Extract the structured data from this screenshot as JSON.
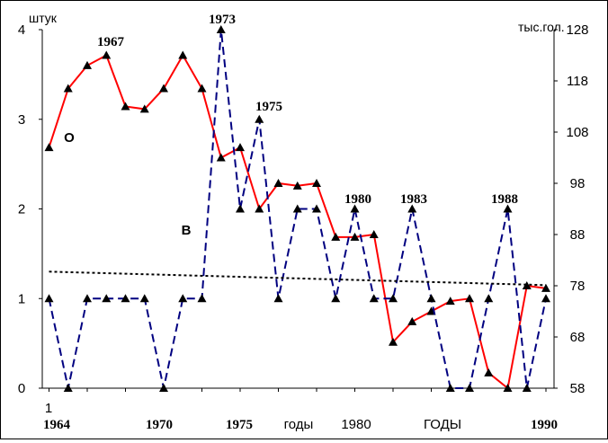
{
  "chart_data": {
    "type": "line",
    "left_axis": {
      "unit": "штук",
      "ylim": [
        0,
        4
      ],
      "ticks": [
        "0",
        "1",
        "2",
        "3",
        "4"
      ]
    },
    "right_axis": {
      "unit": "тыс.гол.",
      "ylim": [
        58,
        128
      ],
      "ticks": [
        "58",
        "68",
        "78",
        "88",
        "98",
        "108",
        "118",
        "128"
      ]
    },
    "x_labels": [
      {
        "text": "1",
        "x": 1964,
        "bold": false,
        "row": "upper"
      },
      {
        "text": "1964",
        "x": 1964,
        "bold": true,
        "row": "lower"
      },
      {
        "text": "1970",
        "x": 1970,
        "bold": true,
        "row": "lower"
      },
      {
        "text": "1975",
        "x": 1975,
        "bold": true,
        "row": "lower"
      },
      {
        "text": "годы",
        "x": 1977.5,
        "bold": false,
        "row": "lower"
      },
      {
        "text": "1980",
        "x": 1980,
        "bold": false,
        "row": "lower"
      },
      {
        "text": "ГОДЫ",
        "x": 1984.5,
        "bold": false,
        "row": "lower"
      },
      {
        "text": "1990",
        "x": 1990,
        "bold": true,
        "row": "lower"
      }
    ],
    "series": [
      {
        "name": "О",
        "axis": "right",
        "color": "#ff0000",
        "style": "solid",
        "x": [
          1964,
          1965,
          1966,
          1967,
          1968,
          1969,
          1970,
          1971,
          1972,
          1973,
          1974,
          1975,
          1976,
          1977,
          1978,
          1979,
          1980,
          1981,
          1982,
          1983,
          1984,
          1985,
          1986,
          1987,
          1988,
          1989,
          1990
        ],
        "y": [
          105,
          116.5,
          121,
          123,
          113,
          112.5,
          116.5,
          123,
          116.5,
          103,
          105,
          93,
          98,
          97.5,
          98,
          87.5,
          87.5,
          88,
          67,
          71,
          73,
          75,
          75.5,
          61,
          58,
          78,
          77.5
        ]
      },
      {
        "name": "В",
        "axis": "left",
        "color": "#000080",
        "style": "dashed",
        "x": [
          1964,
          1965,
          1966,
          1967,
          1968,
          1969,
          1970,
          1971,
          1972,
          1973,
          1974,
          1975,
          1976,
          1977,
          1978,
          1979,
          1980,
          1981,
          1982,
          1983,
          1984,
          1985,
          1986,
          1987,
          1988,
          1989,
          1990
        ],
        "y": [
          1,
          0,
          1,
          1,
          1,
          1,
          0,
          1,
          1,
          4,
          2,
          3,
          1,
          2,
          2,
          1,
          2,
          1,
          1,
          2,
          1,
          0,
          0,
          1,
          2,
          0,
          1
        ]
      },
      {
        "name": "trend",
        "axis": "left",
        "color": "#000000",
        "style": "dotted",
        "x": [
          1964,
          1990
        ],
        "y": [
          1.3,
          1.15
        ]
      }
    ],
    "series_labels": [
      {
        "text": "О",
        "series": "О"
      },
      {
        "text": "В",
        "series": "В"
      }
    ],
    "annotations": [
      {
        "text": "1967",
        "x": 1967,
        "series": "О"
      },
      {
        "text": "1973",
        "x": 1973,
        "series": "В"
      },
      {
        "text": "1975",
        "x": 1975,
        "series": "В"
      },
      {
        "text": "1980",
        "x": 1980,
        "series": "В"
      },
      {
        "text": "1983",
        "x": 1983,
        "series": "В"
      },
      {
        "text": "1988",
        "x": 1988,
        "series": "В"
      }
    ],
    "grid": false,
    "legend": "none"
  }
}
